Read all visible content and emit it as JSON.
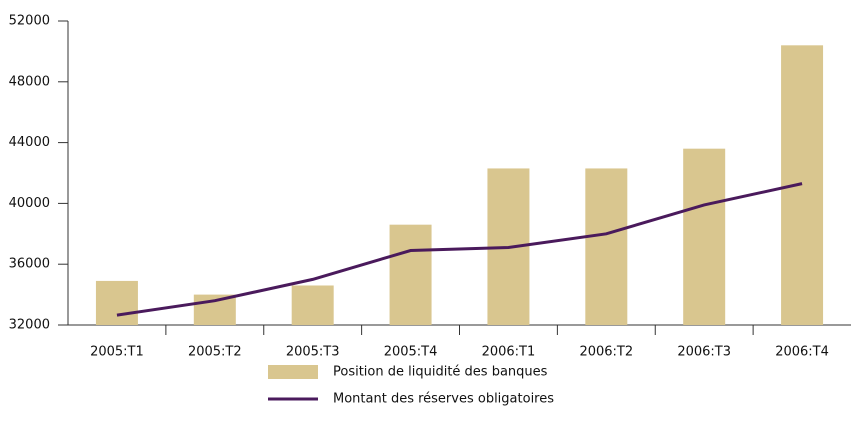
{
  "chart_data": {
    "type": "bar",
    "categories": [
      "2005:T1",
      "2005:T2",
      "2005:T3",
      "2005:T4",
      "2006:T1",
      "2006:T2",
      "2006:T3",
      "2006:T4"
    ],
    "series": [
      {
        "name": "Position de liquidité des banques",
        "type": "bar",
        "color": "#d9c68f",
        "values": [
          34900,
          34000,
          34600,
          38600,
          42300,
          42300,
          43600,
          50400
        ]
      },
      {
        "name": "Montant des réserves obligatoires",
        "type": "line",
        "color": "#4a1a5c",
        "values": [
          32650,
          33600,
          35000,
          36900,
          37100,
          38000,
          39900,
          41300
        ]
      }
    ],
    "ylim": [
      32000,
      52000
    ],
    "yticks": [
      32000,
      36000,
      40000,
      44000,
      48000,
      52000
    ],
    "grid": false
  }
}
